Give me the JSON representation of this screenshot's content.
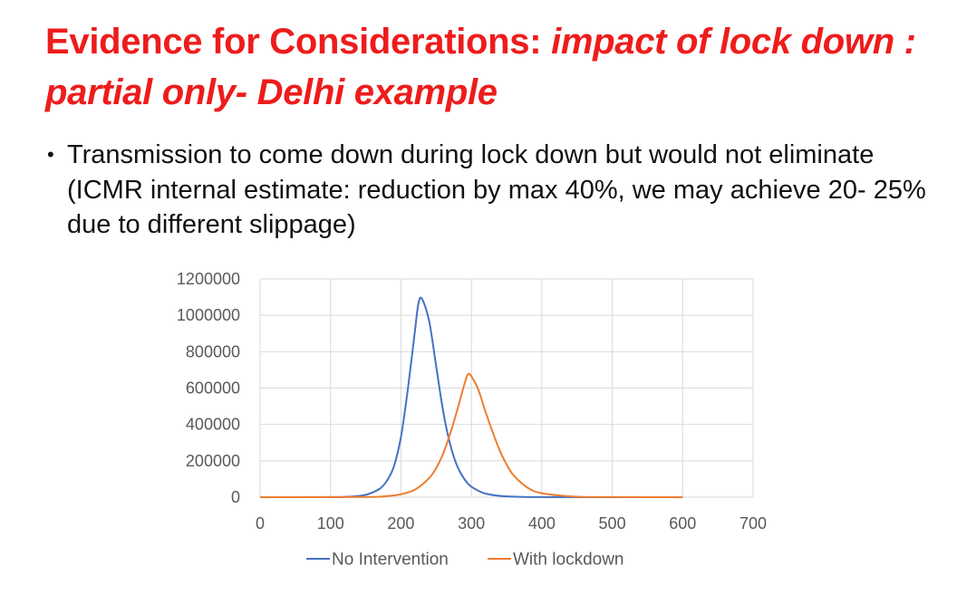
{
  "slide": {
    "title_part1": "Evidence for Considerations: ",
    "title_part2": "impact of lock down : partial only- Delhi example",
    "bullet": "Transmission to come down during lock down but would not eliminate (ICMR internal estimate: reduction by max 40%, we may achieve 20- 25% due to different slippage)"
  },
  "colors": {
    "title": "#ee1c1c",
    "no_intervention": "#4472c4",
    "with_lockdown": "#ed7d31",
    "grid": "#d9d9d9"
  },
  "chart_data": {
    "type": "line",
    "xlim": [
      0,
      700
    ],
    "ylim": [
      0,
      1200000
    ],
    "x_ticks": [
      0,
      100,
      200,
      300,
      400,
      500,
      600,
      700
    ],
    "y_ticks": [
      0,
      200000,
      400000,
      600000,
      800000,
      1000000,
      1200000
    ],
    "x_tick_labels": [
      "0",
      "100",
      "200",
      "300",
      "400",
      "500",
      "600",
      "700"
    ],
    "y_tick_labels": [
      "0",
      "200000",
      "400000",
      "600000",
      "800000",
      "1000000",
      "1200000"
    ],
    "grid": true,
    "legend_position": "bottom",
    "series": [
      {
        "name": "No Intervention",
        "color": "#4472c4",
        "x": [
          0,
          100,
          130,
          150,
          170,
          180,
          190,
          200,
          210,
          220,
          225,
          230,
          240,
          250,
          260,
          270,
          280,
          290,
          300,
          320,
          350,
          400,
          500,
          600
        ],
        "y": [
          0,
          300,
          3500,
          13000,
          47000,
          90000,
          170000,
          330000,
          600000,
          920000,
          1070000,
          1090000,
          970000,
          720000,
          470000,
          290000,
          170000,
          100000,
          58000,
          20000,
          4500,
          500,
          0,
          0
        ]
      },
      {
        "name": "With lockdown",
        "color": "#ed7d31",
        "x": [
          0,
          150,
          180,
          200,
          220,
          240,
          250,
          260,
          270,
          280,
          290,
          295,
          300,
          310,
          320,
          330,
          340,
          350,
          360,
          380,
          400,
          450,
          500,
          600
        ],
        "y": [
          0,
          1000,
          6000,
          16000,
          42000,
          105000,
          160000,
          240000,
          350000,
          480000,
          620000,
          675000,
          665000,
          590000,
          470000,
          360000,
          260000,
          180000,
          120000,
          52000,
          22000,
          2500,
          300,
          0
        ]
      }
    ]
  }
}
